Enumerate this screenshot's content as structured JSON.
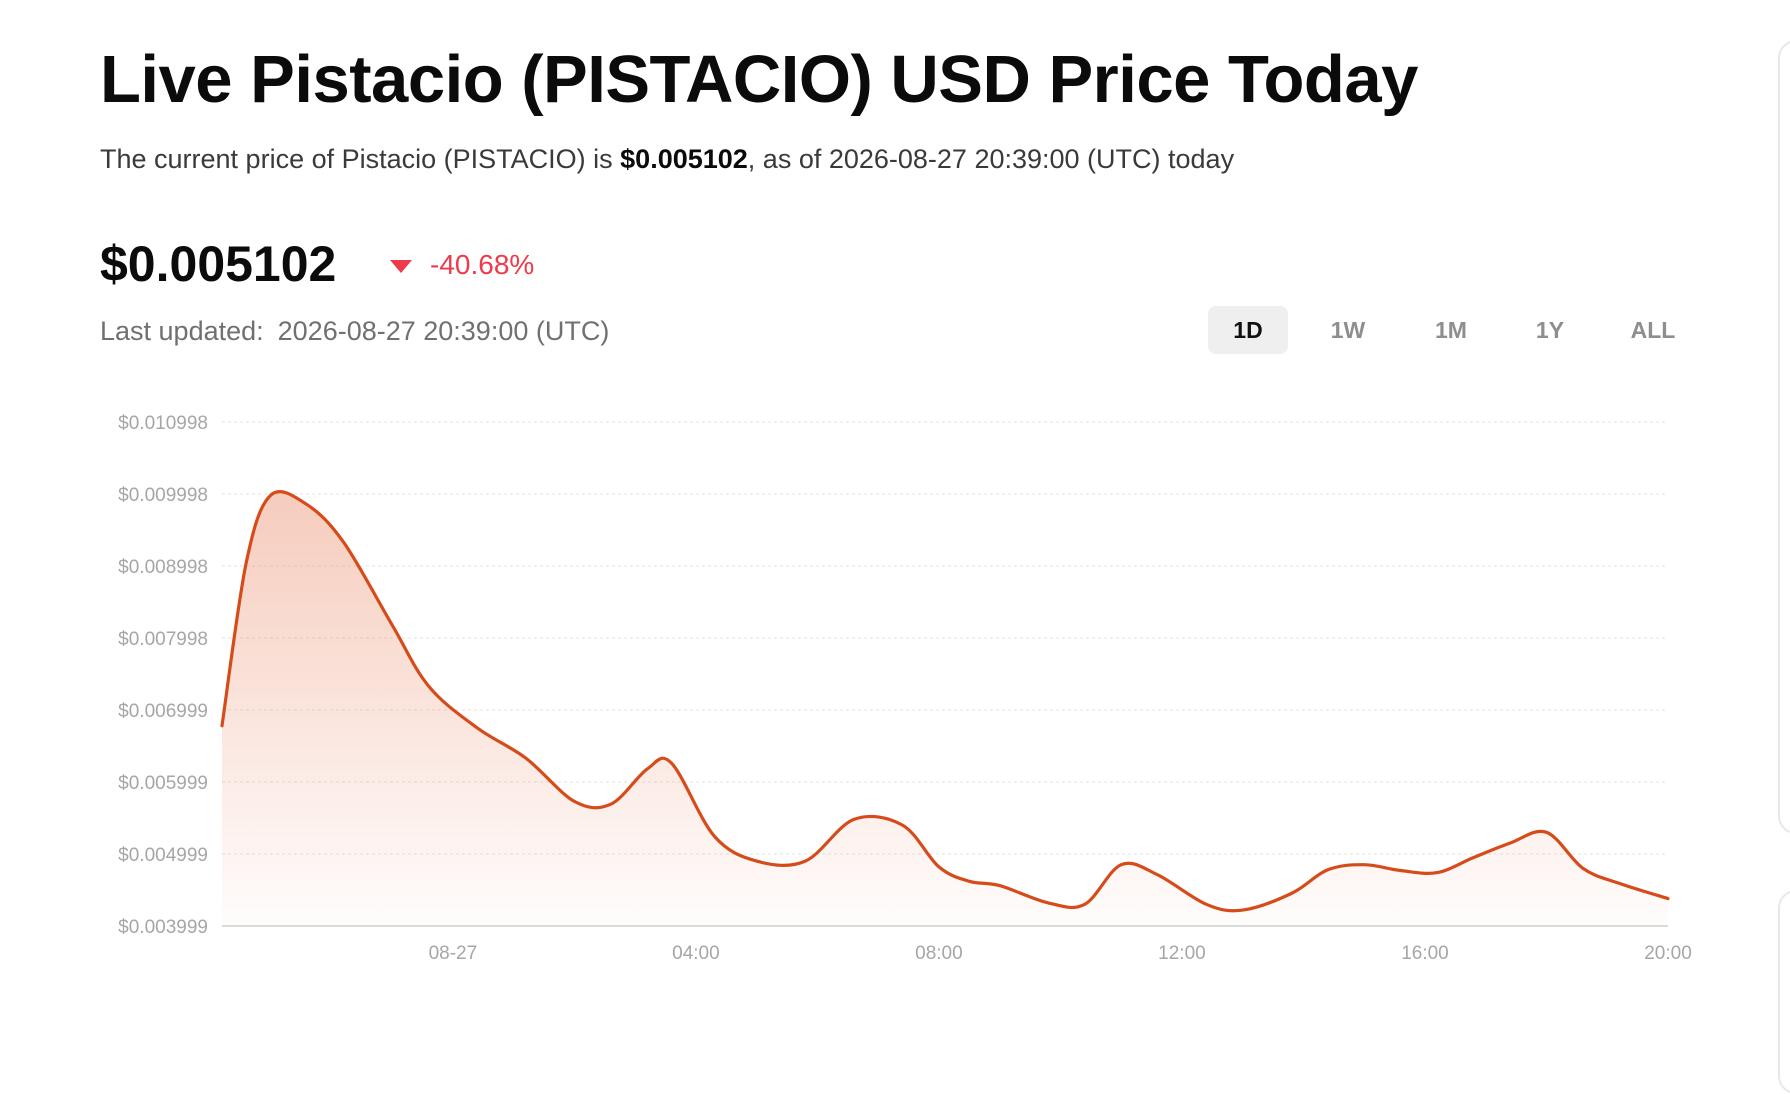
{
  "header": {
    "title": "Live Pistacio (PISTACIO) USD Price Today",
    "subtitle_prefix": "The current price of Pistacio (PISTACIO) is ",
    "subtitle_price": "$0.005102",
    "subtitle_suffix": ", as of 2026-08-27 20:39:00 (UTC) today"
  },
  "price": {
    "value": "$0.005102",
    "change": "-40.68%",
    "change_color": "#ee3a4a",
    "direction_icon": "caret-down-icon"
  },
  "updated": {
    "label": "Last updated:",
    "timestamp": "2026-08-27 20:39:00 (UTC)"
  },
  "range_tabs": [
    {
      "label": "1D",
      "active": true
    },
    {
      "label": "1W",
      "active": false
    },
    {
      "label": "1M",
      "active": false
    },
    {
      "label": "1Y",
      "active": false
    },
    {
      "label": "ALL",
      "active": false
    }
  ],
  "chart_data": {
    "type": "area",
    "title": "",
    "xlabel": "",
    "ylabel": "",
    "line_color": "#d64b1a",
    "grid": true,
    "ylim": [
      0.003999,
      0.010998
    ],
    "xlim": [
      -3.8,
      20.0
    ],
    "yticks": [
      "$0.010998",
      "$0.009998",
      "$0.008998",
      "$0.007998",
      "$0.006999",
      "$0.005999",
      "$0.004999",
      "$0.003999"
    ],
    "yticks_values": [
      0.010998,
      0.009998,
      0.008998,
      0.007998,
      0.006999,
      0.005999,
      0.004999,
      0.003999
    ],
    "xticks": [
      {
        "label": "08-27",
        "x": 0.0
      },
      {
        "label": "04:00",
        "x": 4.0
      },
      {
        "label": "08:00",
        "x": 8.0
      },
      {
        "label": "12:00",
        "x": 12.0
      },
      {
        "label": "16:00",
        "x": 16.0
      },
      {
        "label": "20:00",
        "x": 20.0
      }
    ],
    "series": [
      {
        "x": [
          -3.8,
          -3.4,
          -3.0,
          -2.4,
          -1.8,
          -1.0,
          -0.4,
          0.4,
          1.2,
          2.0,
          2.6,
          3.2,
          3.6,
          4.3,
          5.0,
          5.8,
          6.6,
          7.4,
          8.0,
          8.5,
          9.0,
          9.8,
          10.4,
          11.0,
          11.6,
          12.4,
          13.0,
          13.8,
          14.4,
          15.0,
          15.6,
          16.2,
          16.8,
          17.4,
          18.0,
          18.6,
          19.2,
          20.0
        ],
        "y": [
          0.00678,
          0.00905,
          0.00998,
          0.00985,
          0.00933,
          0.00818,
          0.00733,
          0.00675,
          0.00633,
          0.00573,
          0.00569,
          0.00618,
          0.00626,
          0.00525,
          0.0049,
          0.0049,
          0.00548,
          0.0054,
          0.00482,
          0.00462,
          0.00456,
          0.00432,
          0.0043,
          0.00485,
          0.00471,
          0.0043,
          0.00422,
          0.00445,
          0.00478,
          0.00485,
          0.00477,
          0.00474,
          0.00495,
          0.00515,
          0.0053,
          0.0048,
          0.00459,
          0.00438
        ]
      }
    ]
  }
}
